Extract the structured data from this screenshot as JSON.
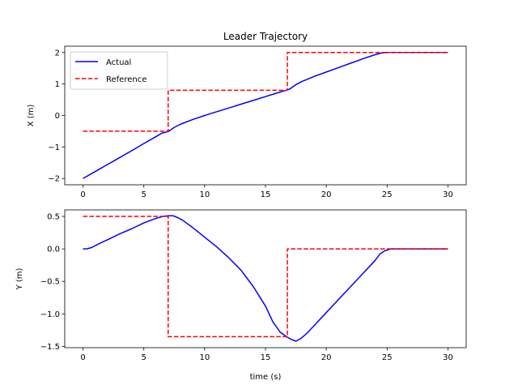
{
  "chart_data": [
    {
      "type": "line",
      "title": "Leader Trajectory",
      "xlabel": "",
      "ylabel": "X (m)",
      "xlim": [
        -1.5,
        31.5
      ],
      "ylim": [
        -2.2,
        2.2
      ],
      "xticks": [
        0,
        5,
        10,
        15,
        20,
        25,
        30
      ],
      "yticks": [
        -2,
        -1,
        0,
        1,
        2
      ],
      "legend": {
        "position": "top-left",
        "entries": [
          "Actual",
          "Reference"
        ]
      },
      "series": [
        {
          "name": "Actual",
          "color": "#0000ff",
          "style": "solid",
          "x": [
            0,
            1,
            2,
            3,
            4,
            5,
            6,
            6.5,
            7,
            7.5,
            8,
            9,
            10,
            11,
            12,
            13,
            14,
            15,
            16,
            16.7,
            17,
            17.5,
            18,
            19,
            20,
            21,
            22,
            23,
            24,
            24.5,
            25,
            26,
            27,
            28,
            29,
            30
          ],
          "y": [
            -2.0,
            -1.78,
            -1.56,
            -1.34,
            -1.12,
            -0.89,
            -0.67,
            -0.56,
            -0.51,
            -0.38,
            -0.28,
            -0.13,
            0.0,
            0.12,
            0.24,
            0.36,
            0.48,
            0.6,
            0.72,
            0.8,
            0.84,
            0.98,
            1.08,
            1.24,
            1.38,
            1.52,
            1.66,
            1.8,
            1.93,
            1.98,
            2.0,
            2.0,
            2.0,
            2.0,
            2.0,
            2.0
          ]
        },
        {
          "name": "Reference",
          "color": "#ff0000",
          "style": "dashed",
          "x": [
            0,
            7.0,
            7.0,
            16.8,
            16.8,
            30
          ],
          "y": [
            -0.5,
            -0.5,
            0.8,
            0.8,
            2.0,
            2.0
          ]
        }
      ]
    },
    {
      "type": "line",
      "title": "",
      "xlabel": "time (s)",
      "ylabel": "Y (m)",
      "xlim": [
        -1.5,
        31.5
      ],
      "ylim": [
        -1.52,
        0.6
      ],
      "xticks": [
        0,
        5,
        10,
        15,
        20,
        25,
        30
      ],
      "yticks": [
        -1.5,
        -1.0,
        -0.5,
        0.0,
        0.5
      ],
      "series": [
        {
          "name": "Actual",
          "color": "#0000ff",
          "style": "solid",
          "x": [
            0,
            0.3,
            0.7,
            1,
            2,
            3,
            4,
            5,
            6,
            6.6,
            7,
            7.4,
            7.8,
            8.2,
            9,
            10,
            11,
            12,
            13,
            14,
            15,
            15.6,
            16.2,
            16.8,
            17.2,
            17.5,
            17.9,
            18.4,
            19,
            20,
            21,
            22,
            23,
            24,
            24.4,
            24.8,
            25.3,
            26,
            27,
            28,
            29,
            30
          ],
          "y": [
            0.0,
            0.0,
            0.02,
            0.05,
            0.14,
            0.23,
            0.31,
            0.4,
            0.47,
            0.5,
            0.51,
            0.51,
            0.48,
            0.44,
            0.33,
            0.18,
            0.03,
            -0.14,
            -0.33,
            -0.58,
            -0.88,
            -1.12,
            -1.28,
            -1.36,
            -1.4,
            -1.42,
            -1.38,
            -1.3,
            -1.18,
            -0.98,
            -0.78,
            -0.58,
            -0.38,
            -0.18,
            -0.08,
            -0.03,
            0.0,
            0.0,
            0.0,
            0.0,
            0.0,
            0.0
          ]
        },
        {
          "name": "Reference",
          "color": "#ff0000",
          "style": "dashed",
          "x": [
            0,
            7.0,
            7.0,
            16.8,
            16.8,
            30
          ],
          "y": [
            0.5,
            0.5,
            -1.35,
            -1.35,
            0.0,
            0.0
          ]
        }
      ]
    }
  ]
}
